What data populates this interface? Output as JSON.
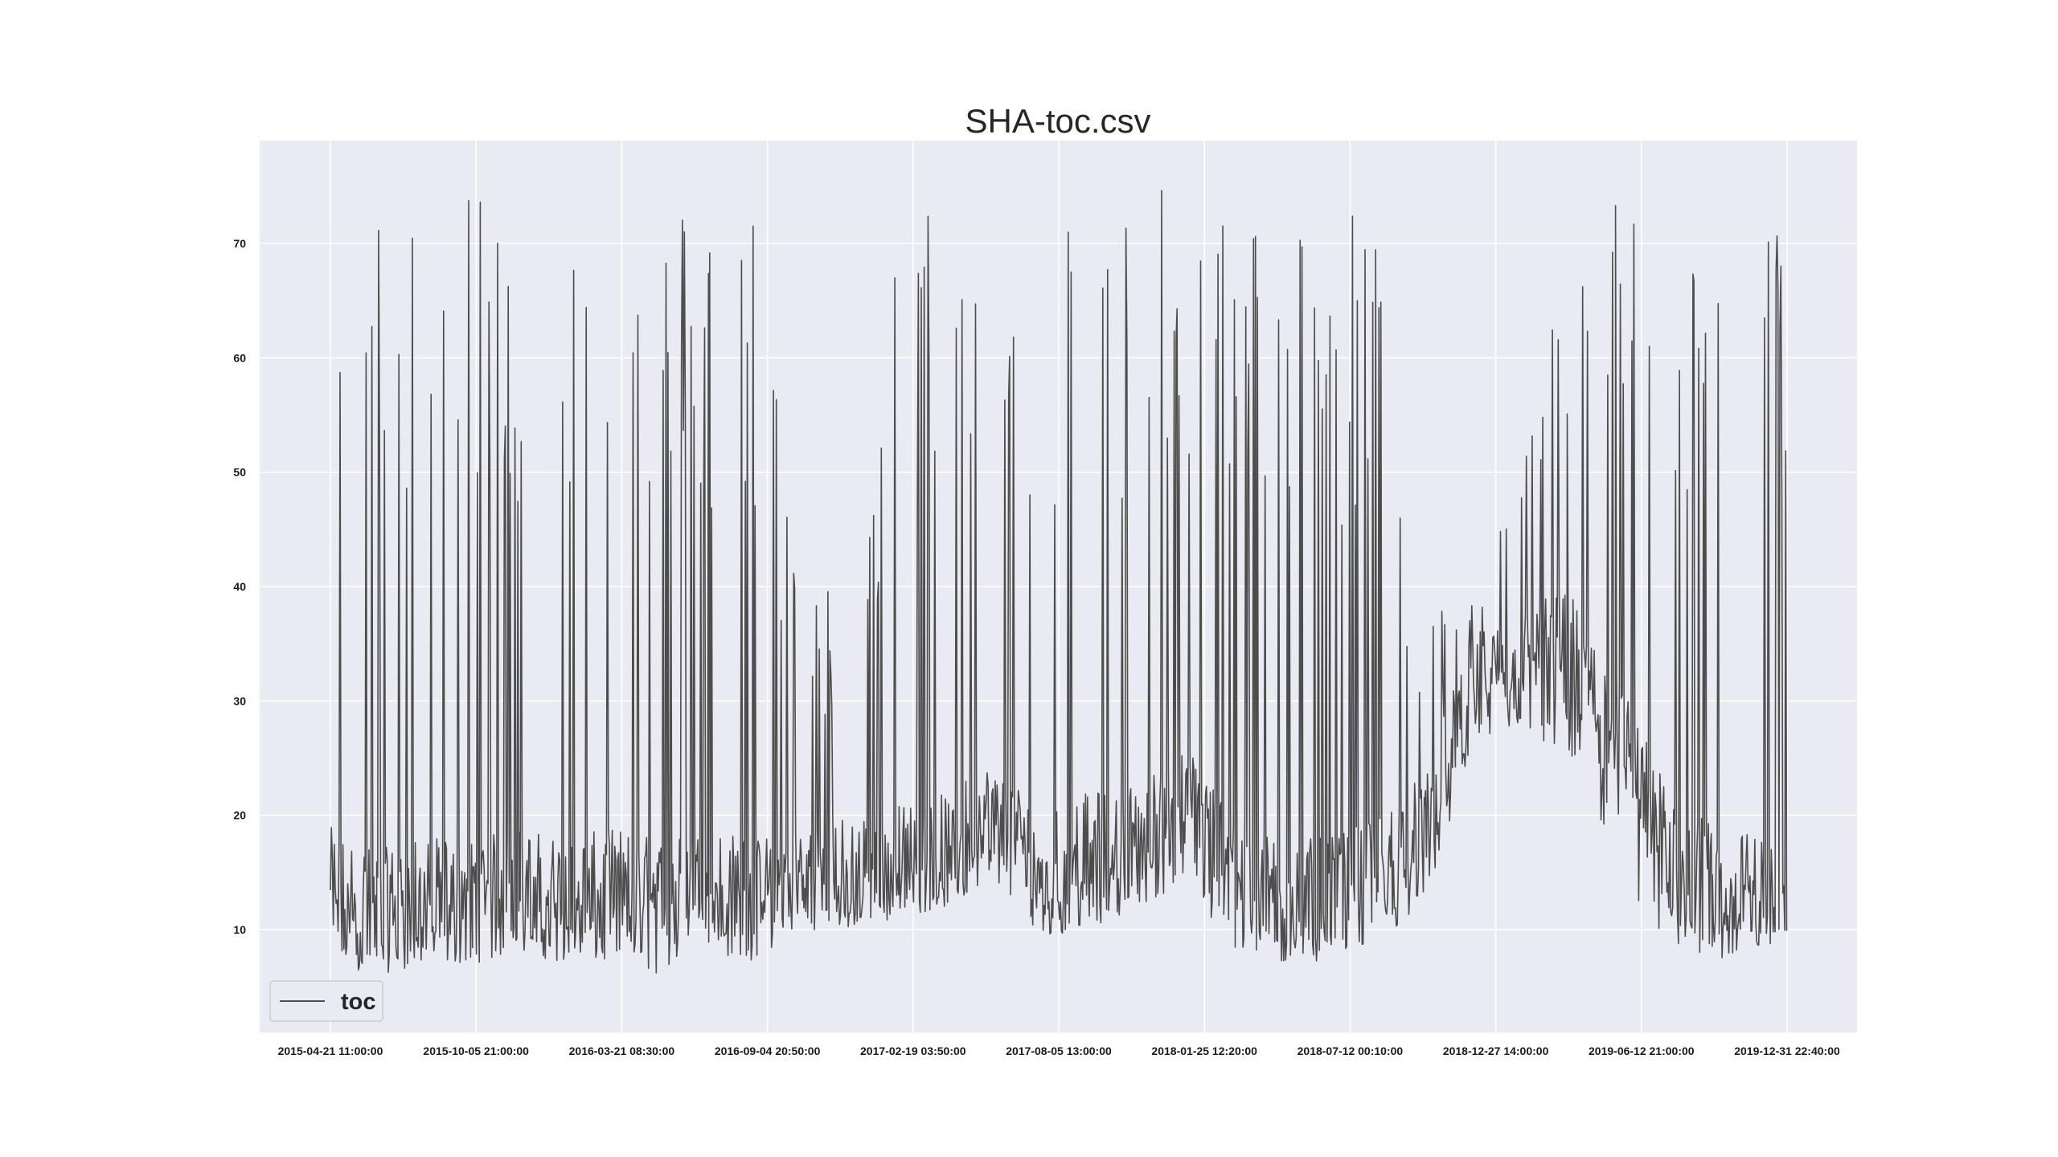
{
  "chart_data": {
    "type": "line",
    "title": "SHA-toc.csv",
    "xlabel": "",
    "ylabel": "",
    "x_ticks": [
      "2015-04-21 11:00:00",
      "2015-10-05 21:00:00",
      "2016-03-21 08:30:00",
      "2016-09-04 20:50:00",
      "2017-02-19 03:50:00",
      "2017-08-05 13:00:00",
      "2018-01-25 12:20:00",
      "2018-07-12 00:10:00",
      "2018-12-27 14:00:00",
      "2019-06-12 21:00:00",
      "2019-12-31 22:40:00"
    ],
    "y_ticks": [
      10,
      20,
      30,
      40,
      50,
      60,
      70
    ],
    "ylim": [
      1,
      79
    ],
    "grid": true,
    "legend": {
      "position": "lower-left",
      "entries": [
        "toc"
      ]
    },
    "series": [
      {
        "name": "toc",
        "color": "#4d4d4d",
        "x": [
          "2015-04-21 11:00:00",
          "2015-06-15 00:00:00",
          "2015-08-10 00:00:00",
          "2015-10-05 21:00:00",
          "2015-12-01 00:00:00",
          "2016-01-25 00:00:00",
          "2016-03-21 08:30:00",
          "2016-05-15 00:00:00",
          "2016-07-10 00:00:00",
          "2016-09-04 20:50:00",
          "2016-10-30 00:00:00",
          "2016-12-25 00:00:00",
          "2017-02-19 03:50:00",
          "2017-04-15 00:00:00",
          "2017-06-10 00:00:00",
          "2017-08-05 13:00:00",
          "2017-09-30 00:00:00",
          "2017-11-27 00:00:00",
          "2018-01-25 12:20:00",
          "2018-03-22 00:00:00",
          "2018-05-17 00:00:00",
          "2018-07-12 00:10:00",
          "2018-09-05 00:00:00",
          "2018-10-31 00:00:00",
          "2018-12-27 14:00:00",
          "2019-02-20 00:00:00",
          "2019-04-17 00:00:00",
          "2019-06-12 21:00:00",
          "2019-08-09 00:00:00",
          "2019-10-05 00:00:00",
          "2019-12-31 22:40:00"
        ],
        "min": [
          7,
          6,
          7,
          7,
          8,
          7,
          7,
          6,
          8,
          7,
          10,
          10,
          11,
          12,
          14,
          9,
          10,
          12,
          14,
          7,
          7,
          7,
          9,
          12,
          26,
          28,
          24,
          12,
          9,
          7,
          9
        ],
        "max": [
          74,
          73,
          74,
          74,
          75,
          74,
          74,
          74,
          75,
          75,
          40,
          41,
          72,
          75,
          75,
          75,
          74,
          75,
          75,
          75,
          74,
          74,
          73,
          38,
          40,
          50,
          70,
          75,
          75,
          74,
          72
        ],
        "base": [
          11,
          9,
          10,
          10,
          11,
          10,
          11,
          10,
          11,
          10,
          12,
          12,
          13,
          14,
          17,
          13,
          14,
          15,
          18,
          13,
          10,
          10,
          12,
          16,
          28,
          30,
          32,
          25,
          15,
          11,
          10
        ]
      }
    ]
  }
}
